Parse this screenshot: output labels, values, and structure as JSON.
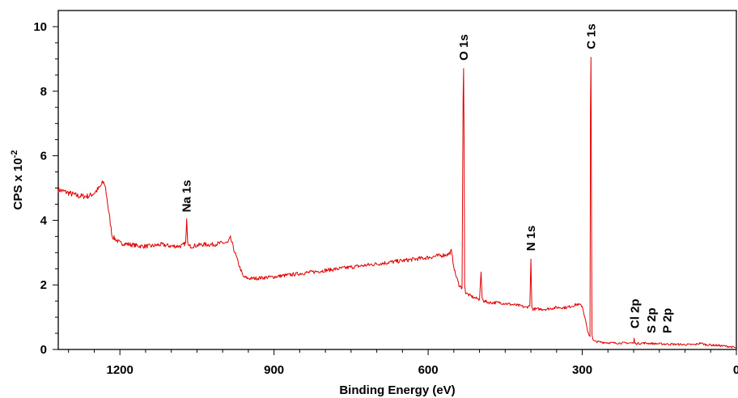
{
  "chart_data": {
    "type": "line",
    "xlabel": "Binding Energy (eV)",
    "ylabel_main": "CPS x 10",
    "ylabel_exp": "-2",
    "xlim": [
      1320,
      0
    ],
    "ylim": [
      0,
      10.5
    ],
    "x_reversed": true,
    "x_ticks": [
      1200,
      900,
      600,
      300,
      0
    ],
    "y_ticks": [
      0,
      2,
      4,
      6,
      8,
      10
    ],
    "grid": false,
    "line_color": "#e00000",
    "series": [
      {
        "x": [
          1320,
          1300,
          1280,
          1260,
          1250,
          1240,
          1232,
          1228,
          1222,
          1215,
          1200,
          1180,
          1160,
          1140,
          1120,
          1100,
          1080,
          1072,
          1070,
          1068,
          1066,
          1060,
          1040,
          1020,
          1000,
          990,
          985,
          980,
          970,
          960,
          950,
          940,
          900,
          850,
          800,
          750,
          700,
          650,
          600,
          580,
          560,
          555,
          548,
          540,
          534,
          532,
          531,
          530,
          529,
          527,
          522,
          510,
          500,
          497,
          495,
          492,
          480,
          460,
          440,
          420,
          410,
          402,
          400,
          399,
          398,
          396,
          390,
          370,
          350,
          330,
          310,
          300,
          295,
          290,
          287,
          285,
          284,
          283,
          282,
          281,
          279,
          275,
          260,
          240,
          220,
          210,
          200,
          199,
          198,
          196,
          180,
          160,
          140,
          120,
          100,
          80,
          70,
          60,
          40,
          20,
          10,
          0
        ],
        "y": [
          4.95,
          4.85,
          4.75,
          4.75,
          4.85,
          5.0,
          5.2,
          5.0,
          4.3,
          3.5,
          3.3,
          3.25,
          3.2,
          3.2,
          3.25,
          3.2,
          3.2,
          3.3,
          4.05,
          3.3,
          3.2,
          3.2,
          3.25,
          3.25,
          3.3,
          3.3,
          3.45,
          3.2,
          2.7,
          2.25,
          2.2,
          2.2,
          2.25,
          2.35,
          2.45,
          2.55,
          2.65,
          2.75,
          2.85,
          2.9,
          2.95,
          3.05,
          2.4,
          2.0,
          1.9,
          7.8,
          8.7,
          6.5,
          2.0,
          1.75,
          1.7,
          1.6,
          1.55,
          2.4,
          1.6,
          1.5,
          1.45,
          1.45,
          1.4,
          1.35,
          1.3,
          1.35,
          2.8,
          1.9,
          1.3,
          1.25,
          1.25,
          1.25,
          1.3,
          1.3,
          1.4,
          1.35,
          1.0,
          0.6,
          0.45,
          0.4,
          7.4,
          9.05,
          4.0,
          0.45,
          0.3,
          0.25,
          0.22,
          0.2,
          0.2,
          0.2,
          0.2,
          0.35,
          0.2,
          0.18,
          0.2,
          0.18,
          0.17,
          0.16,
          0.15,
          0.15,
          0.2,
          0.15,
          0.13,
          0.1,
          0.08,
          0.05
        ]
      }
    ],
    "peak_labels": [
      {
        "text": "Na 1s",
        "x": 1070,
        "y": 4.25
      },
      {
        "text": "O 1s",
        "x": 531,
        "y": 8.95
      },
      {
        "text": "N 1s",
        "x": 400,
        "y": 3.05
      },
      {
        "text": "C 1s",
        "x": 283,
        "y": 9.3
      },
      {
        "text": "Cl 2p",
        "x": 198,
        "y": 0.65
      },
      {
        "text": "S 2p",
        "x": 165,
        "y": 0.5
      },
      {
        "text": "P 2p",
        "x": 135,
        "y": 0.5
      }
    ]
  }
}
